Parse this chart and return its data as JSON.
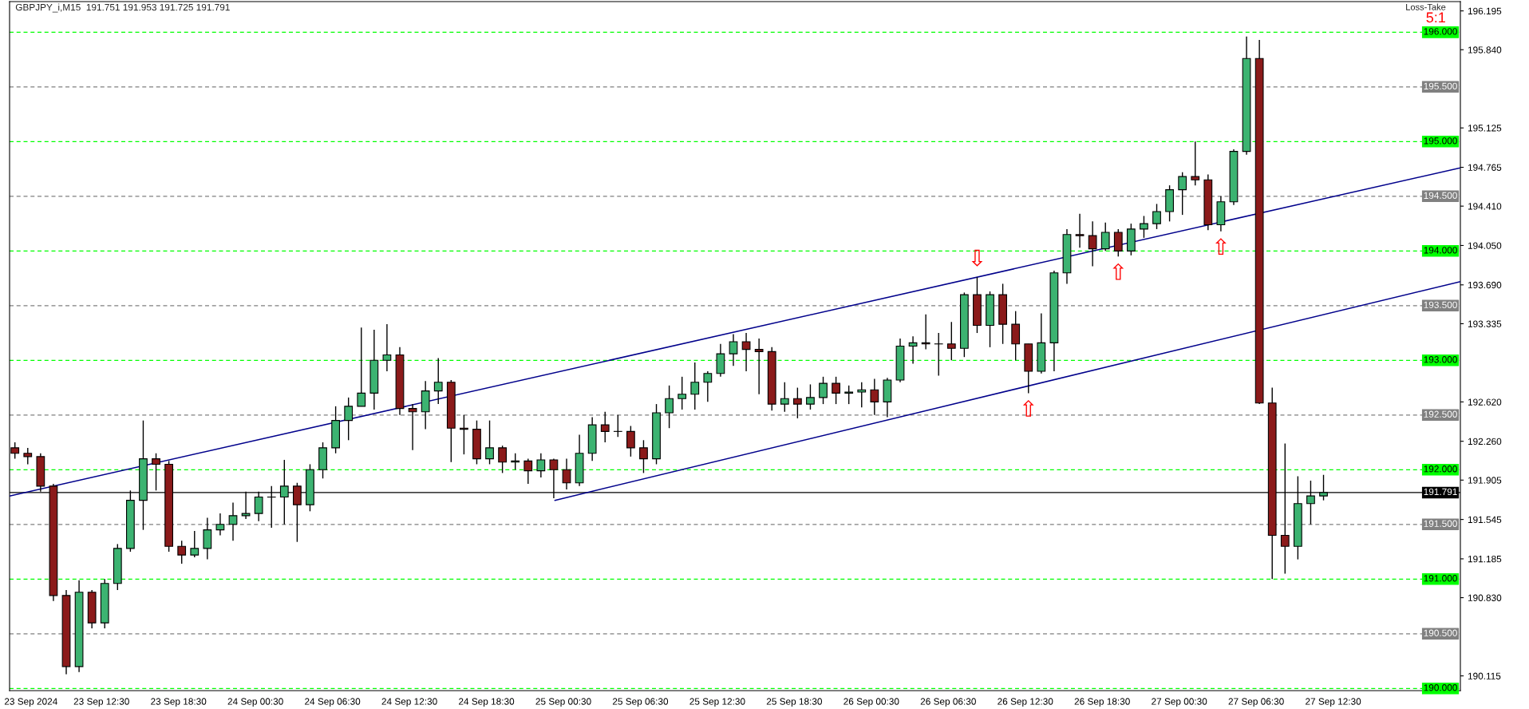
{
  "chart_data": {
    "type": "candlestick",
    "title": "GBPJPY_i,M15  191.751 191.953 191.725 191.791",
    "x": [
      "2024-09-23T05:45",
      "2024-09-23T06:45",
      "2024-09-23T07:45",
      "2024-09-23T08:45",
      "2024-09-23T09:45",
      "2024-09-23T10:45",
      "2024-09-23T11:45",
      "2024-09-23T12:45",
      "2024-09-23T13:45",
      "2024-09-23T14:45",
      "2024-09-23T15:45",
      "2024-09-23T16:45",
      "2024-09-23T17:45",
      "2024-09-23T18:45",
      "2024-09-23T19:45",
      "2024-09-23T20:45",
      "2024-09-23T21:45",
      "2024-09-23T22:45",
      "2024-09-23T23:45",
      "2024-09-24T00:45",
      "2024-09-24T01:45",
      "2024-09-24T02:45",
      "2024-09-24T03:45",
      "2024-09-24T04:45",
      "2024-09-24T05:45",
      "2024-09-24T06:45",
      "2024-09-24T07:45",
      "2024-09-24T08:45",
      "2024-09-24T09:45",
      "2024-09-24T10:45",
      "2024-09-24T11:45",
      "2024-09-24T12:45",
      "2024-09-24T13:45",
      "2024-09-24T14:45",
      "2024-09-24T15:45",
      "2024-09-24T16:45",
      "2024-09-24T17:45",
      "2024-09-24T18:45",
      "2024-09-24T19:45",
      "2024-09-24T20:45",
      "2024-09-24T21:45",
      "2024-09-24T22:45",
      "2024-09-24T23:45",
      "2024-09-25T00:45",
      "2024-09-25T01:45",
      "2024-09-25T02:45",
      "2024-09-25T03:45",
      "2024-09-25T04:45",
      "2024-09-25T05:45",
      "2024-09-25T06:45",
      "2024-09-25T07:45",
      "2024-09-25T08:45",
      "2024-09-25T09:45",
      "2024-09-25T10:45",
      "2024-09-25T11:45",
      "2024-09-25T12:45",
      "2024-09-25T13:45",
      "2024-09-25T14:45",
      "2024-09-25T15:45",
      "2024-09-25T16:45",
      "2024-09-25T17:45",
      "2024-09-25T18:45",
      "2024-09-25T19:45",
      "2024-09-25T20:45",
      "2024-09-25T21:45",
      "2024-09-25T22:45",
      "2024-09-25T23:45",
      "2024-09-26T00:45",
      "2024-09-26T01:45",
      "2024-09-26T02:45",
      "2024-09-26T03:45",
      "2024-09-26T04:45",
      "2024-09-26T05:45",
      "2024-09-26T06:45",
      "2024-09-26T07:45",
      "2024-09-26T08:45",
      "2024-09-26T09:45",
      "2024-09-26T10:45",
      "2024-09-26T11:45",
      "2024-09-26T12:45",
      "2024-09-26T13:45",
      "2024-09-26T14:45",
      "2024-09-26T15:45",
      "2024-09-26T16:45",
      "2024-09-26T17:45",
      "2024-09-26T18:45",
      "2024-09-26T19:45",
      "2024-09-26T20:45",
      "2024-09-26T21:45",
      "2024-09-26T22:45",
      "2024-09-26T23:45",
      "2024-09-27T00:45",
      "2024-09-27T01:45",
      "2024-09-27T02:45",
      "2024-09-27T03:45",
      "2024-09-27T04:45",
      "2024-09-27T05:45",
      "2024-09-27T06:45",
      "2024-09-27T07:45",
      "2024-09-27T08:45",
      "2024-09-27T09:45",
      "2024-09-27T10:45",
      "2024-09-27T11:45"
    ],
    "ohlc": [
      [
        192.2,
        192.25,
        192.1,
        192.15
      ],
      [
        192.15,
        192.2,
        192.05,
        192.12
      ],
      [
        192.12,
        192.15,
        191.8,
        191.85
      ],
      [
        191.85,
        191.87,
        190.8,
        190.85
      ],
      [
        190.85,
        190.9,
        190.13,
        190.2
      ],
      [
        190.2,
        190.99,
        190.15,
        190.88
      ],
      [
        190.88,
        190.9,
        190.55,
        190.6
      ],
      [
        190.6,
        191.0,
        190.55,
        190.96
      ],
      [
        190.96,
        191.32,
        190.9,
        191.28
      ],
      [
        191.28,
        191.81,
        191.25,
        191.72
      ],
      [
        191.72,
        192.45,
        191.45,
        192.1
      ],
      [
        192.1,
        192.15,
        191.81,
        192.05
      ],
      [
        192.05,
        192.08,
        191.25,
        191.3
      ],
      [
        191.3,
        191.35,
        191.14,
        191.22
      ],
      [
        191.22,
        191.44,
        191.2,
        191.28
      ],
      [
        191.28,
        191.56,
        191.18,
        191.45
      ],
      [
        191.45,
        191.6,
        191.4,
        191.5
      ],
      [
        191.5,
        191.7,
        191.35,
        191.58
      ],
      [
        191.58,
        191.8,
        191.55,
        191.6
      ],
      [
        191.6,
        191.8,
        191.53,
        191.75
      ],
      [
        191.75,
        191.85,
        191.47,
        191.75
      ],
      [
        191.75,
        192.09,
        191.5,
        191.85
      ],
      [
        191.85,
        191.88,
        191.34,
        191.68
      ],
      [
        191.68,
        192.05,
        191.62,
        192.0
      ],
      [
        192.0,
        192.25,
        191.92,
        192.2
      ],
      [
        192.2,
        192.58,
        192.15,
        192.45
      ],
      [
        192.45,
        192.66,
        192.27,
        192.58
      ],
      [
        192.58,
        193.3,
        192.58,
        192.7
      ],
      [
        192.7,
        193.28,
        192.55,
        193.0
      ],
      [
        193.0,
        193.33,
        192.9,
        193.05
      ],
      [
        193.05,
        193.12,
        192.5,
        192.56
      ],
      [
        192.56,
        192.6,
        192.18,
        192.53
      ],
      [
        192.53,
        192.81,
        192.37,
        192.72
      ],
      [
        192.72,
        193.02,
        192.6,
        192.8
      ],
      [
        192.8,
        192.82,
        192.07,
        192.38
      ],
      [
        192.38,
        192.5,
        192.14,
        192.37
      ],
      [
        192.37,
        192.45,
        192.05,
        192.1
      ],
      [
        192.1,
        192.45,
        192.05,
        192.2
      ],
      [
        192.2,
        192.22,
        191.97,
        192.07
      ],
      [
        192.07,
        192.15,
        192.0,
        192.08
      ],
      [
        192.08,
        192.1,
        191.87,
        191.99
      ],
      [
        191.99,
        192.15,
        191.93,
        192.09
      ],
      [
        192.09,
        192.1,
        191.74,
        192.0
      ],
      [
        192.0,
        192.1,
        191.82,
        191.88
      ],
      [
        191.88,
        192.32,
        191.85,
        192.15
      ],
      [
        192.15,
        192.48,
        192.08,
        192.41
      ],
      [
        192.41,
        192.53,
        192.25,
        192.35
      ],
      [
        192.35,
        192.5,
        192.3,
        192.35
      ],
      [
        192.35,
        192.4,
        192.12,
        192.2
      ],
      [
        192.2,
        192.27,
        191.97,
        192.1
      ],
      [
        192.1,
        192.6,
        192.05,
        192.52
      ],
      [
        192.52,
        192.77,
        192.38,
        192.65
      ],
      [
        192.65,
        192.85,
        192.55,
        192.69
      ],
      [
        192.69,
        192.98,
        192.55,
        192.8
      ],
      [
        192.8,
        192.9,
        192.62,
        192.88
      ],
      [
        192.88,
        193.15,
        192.85,
        193.06
      ],
      [
        193.06,
        193.24,
        192.95,
        193.17
      ],
      [
        193.17,
        193.25,
        192.9,
        193.1
      ],
      [
        193.1,
        193.2,
        192.69,
        193.08
      ],
      [
        193.08,
        193.12,
        192.54,
        192.6
      ],
      [
        192.6,
        192.8,
        192.53,
        192.65
      ],
      [
        192.65,
        192.75,
        192.47,
        192.6
      ],
      [
        192.6,
        192.78,
        192.55,
        192.66
      ],
      [
        192.66,
        192.85,
        192.6,
        192.79
      ],
      [
        192.79,
        192.85,
        192.6,
        192.7
      ],
      [
        192.7,
        192.77,
        192.6,
        192.71
      ],
      [
        192.71,
        192.8,
        192.57,
        192.73
      ],
      [
        192.73,
        192.83,
        192.5,
        192.62
      ],
      [
        192.62,
        192.84,
        192.48,
        192.82
      ],
      [
        192.82,
        193.2,
        192.8,
        193.13
      ],
      [
        193.13,
        193.22,
        192.97,
        193.16
      ],
      [
        193.16,
        193.42,
        193.1,
        193.15
      ],
      [
        193.15,
        193.25,
        192.86,
        193.15
      ],
      [
        193.15,
        193.35,
        193.0,
        193.11
      ],
      [
        193.11,
        193.62,
        193.03,
        193.6
      ],
      [
        193.6,
        193.76,
        193.25,
        193.32
      ],
      [
        193.32,
        193.63,
        193.12,
        193.6
      ],
      [
        193.6,
        193.7,
        193.15,
        193.33
      ],
      [
        193.33,
        193.45,
        193.0,
        193.15
      ],
      [
        193.15,
        193.15,
        192.7,
        192.9
      ],
      [
        192.9,
        193.43,
        192.88,
        193.16
      ],
      [
        193.16,
        193.82,
        192.9,
        193.8
      ],
      [
        193.8,
        194.2,
        193.7,
        194.15
      ],
      [
        194.15,
        194.34,
        194.03,
        194.14
      ],
      [
        194.14,
        194.27,
        193.86,
        194.02
      ],
      [
        194.02,
        194.26,
        194.0,
        194.17
      ],
      [
        194.17,
        194.2,
        193.95,
        194.0
      ],
      [
        194.0,
        194.25,
        193.96,
        194.2
      ],
      [
        194.2,
        194.32,
        194.12,
        194.25
      ],
      [
        194.25,
        194.43,
        194.2,
        194.36
      ],
      [
        194.36,
        194.6,
        194.27,
        194.56
      ],
      [
        194.56,
        194.72,
        194.33,
        194.68
      ],
      [
        194.68,
        195.0,
        194.6,
        194.65
      ],
      [
        194.65,
        194.7,
        194.19,
        194.24
      ],
      [
        194.24,
        194.5,
        194.18,
        194.45
      ],
      [
        194.45,
        194.93,
        194.42,
        194.91
      ],
      [
        194.91,
        195.96,
        194.88,
        195.76
      ],
      [
        195.76,
        195.93,
        192.6,
        192.61
      ],
      [
        192.61,
        192.75,
        191.0,
        191.4
      ],
      [
        191.4,
        192.24,
        191.05,
        191.3
      ],
      [
        191.3,
        191.94,
        191.18,
        191.69
      ],
      [
        191.69,
        191.9,
        191.5,
        191.76
      ],
      [
        191.76,
        191.953,
        191.72,
        191.791
      ]
    ],
    "series": [
      {
        "type": "line",
        "color": "#00008b",
        "x": [
          "2024-09-23T05:20",
          "2024-09-27T22:25"
        ],
        "values": [
          191.76,
          194.76
        ]
      },
      {
        "type": "line",
        "color": "#00008b",
        "x": [
          "2024-09-24T23:50",
          "2024-09-27T22:25"
        ],
        "values": [
          191.72,
          193.72
        ]
      }
    ],
    "xlim": [
      "2024-09-23T05:20",
      "2024-09-27T22:25"
    ],
    "xticks": [
      {
        "value": "2024-09-23T07:00",
        "label": "23 Sep 2024"
      },
      {
        "value": "2024-09-23T12:30",
        "label": "23 Sep 12:30"
      },
      {
        "value": "2024-09-23T18:30",
        "label": "23 Sep 18:30"
      },
      {
        "value": "2024-09-24T00:30",
        "label": "24 Sep 00:30"
      },
      {
        "value": "2024-09-24T06:30",
        "label": "24 Sep 06:30"
      },
      {
        "value": "2024-09-24T12:30",
        "label": "24 Sep 12:30"
      },
      {
        "value": "2024-09-24T18:30",
        "label": "24 Sep 18:30"
      },
      {
        "value": "2024-09-25T00:30",
        "label": "25 Sep 00:30"
      },
      {
        "value": "2024-09-25T06:30",
        "label": "25 Sep 06:30"
      },
      {
        "value": "2024-09-25T12:30",
        "label": "25 Sep 12:30"
      },
      {
        "value": "2024-09-25T18:30",
        "label": "25 Sep 18:30"
      },
      {
        "value": "2024-09-26T00:30",
        "label": "26 Sep 00:30"
      },
      {
        "value": "2024-09-26T06:30",
        "label": "26 Sep 06:30"
      },
      {
        "value": "2024-09-26T12:30",
        "label": "26 Sep 12:30"
      },
      {
        "value": "2024-09-26T18:30",
        "label": "26 Sep 18:30"
      },
      {
        "value": "2024-09-27T00:30",
        "label": "27 Sep 00:30"
      },
      {
        "value": "2024-09-27T06:30",
        "label": "27 Sep 06:30"
      },
      {
        "value": "2024-09-27T12:30",
        "label": "27 Sep 12:30"
      }
    ],
    "ylim": [
      189.98,
      196.28
    ],
    "yticks": [
      {
        "value": 196.195,
        "label": "196.195"
      },
      {
        "value": 195.84,
        "label": "195.840"
      },
      {
        "value": 195.125,
        "label": "195.125"
      },
      {
        "value": 194.765,
        "label": "194.765"
      },
      {
        "value": 194.41,
        "label": "194.410"
      },
      {
        "value": 194.05,
        "label": "194.050"
      },
      {
        "value": 193.69,
        "label": "193.690"
      },
      {
        "value": 193.335,
        "label": "193.335"
      },
      {
        "value": 192.62,
        "label": "192.620"
      },
      {
        "value": 192.26,
        "label": "192.260"
      },
      {
        "value": 191.905,
        "label": "191.905"
      },
      {
        "value": 191.545,
        "label": "191.545"
      },
      {
        "value": 191.185,
        "label": "191.185"
      },
      {
        "value": 190.83,
        "label": "190.830"
      },
      {
        "value": 190.115,
        "label": "190.115"
      }
    ],
    "ref_lines": [
      {
        "axis": "y",
        "value": 196.0,
        "label": "196.000",
        "color": "#00ff00",
        "line_style": "dashed"
      },
      {
        "axis": "y",
        "value": 195.5,
        "label": "195.500",
        "color": "#808080",
        "line_style": "dashed"
      },
      {
        "axis": "y",
        "value": 195.0,
        "label": "195.000",
        "color": "#00ff00",
        "line_style": "dashed"
      },
      {
        "axis": "y",
        "value": 194.5,
        "label": "194.500",
        "color": "#808080",
        "line_style": "dashed"
      },
      {
        "axis": "y",
        "value": 194.0,
        "label": "194.000",
        "color": "#00ff00",
        "line_style": "dashed"
      },
      {
        "axis": "y",
        "value": 193.5,
        "label": "193.500",
        "color": "#808080",
        "line_style": "dashed"
      },
      {
        "axis": "y",
        "value": 193.0,
        "label": "193.000",
        "color": "#00ff00",
        "line_style": "dashed"
      },
      {
        "axis": "y",
        "value": 192.5,
        "label": "192.500",
        "color": "#808080",
        "line_style": "dashed"
      },
      {
        "axis": "y",
        "value": 192.0,
        "label": "192.000",
        "color": "#00ff00",
        "line_style": "dashed"
      },
      {
        "axis": "y",
        "value": 191.791,
        "label": "191.791",
        "color": "#000000",
        "line_style": "solid"
      },
      {
        "axis": "y",
        "value": 191.5,
        "label": "191.500",
        "color": "#808080",
        "line_style": "dashed"
      },
      {
        "axis": "y",
        "value": 191.0,
        "label": "191.000",
        "color": "#00ff00",
        "line_style": "dashed"
      },
      {
        "axis": "y",
        "value": 190.5,
        "label": "190.500",
        "color": "#808080",
        "line_style": "dashed"
      },
      {
        "axis": "y",
        "value": 190.0,
        "label": "190.000",
        "color": "#00ff00",
        "line_style": "dashed"
      }
    ],
    "annotations": [
      "Loss-Take",
      "5:1",
      {
        "text": "⇩",
        "x": "2024-09-26T08:45",
        "y": 193.76
      },
      {
        "text": "⇧",
        "x": "2024-09-26T12:45",
        "y": 192.7
      },
      {
        "text": "⇧",
        "x": "2024-09-26T19:45",
        "y": 193.95
      },
      {
        "text": "⇧",
        "x": "2024-09-27T03:45",
        "y": 194.18
      }
    ]
  }
}
